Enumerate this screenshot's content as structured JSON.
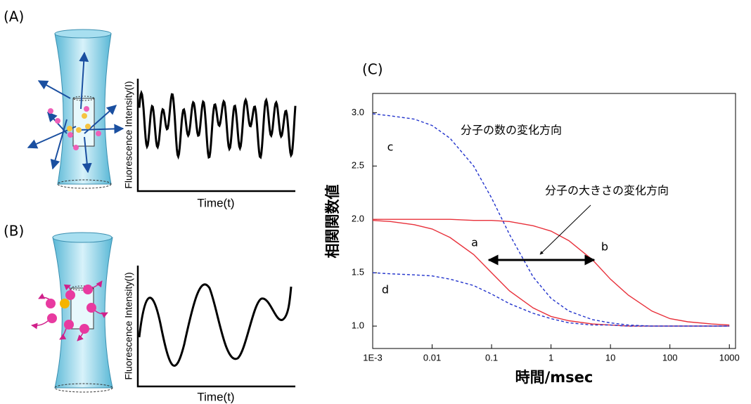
{
  "panels": [
    {
      "label": "(A)",
      "ylabel": "Fluorescence Intensity(I)",
      "xlabel": "Time(t)"
    },
    {
      "label": "(B)",
      "ylabel": "Fluorescence Intensity(I)",
      "xlabel": "Time(t)"
    }
  ],
  "chart_data": {
    "type": "line",
    "title": "(C)",
    "xlabel": "時間/msec",
    "ylabel": "相関関数値",
    "xscale": "log",
    "x": [
      0.001,
      0.002,
      0.005,
      0.01,
      0.02,
      0.05,
      0.1,
      0.2,
      0.5,
      1,
      2,
      5,
      10,
      20,
      50,
      100,
      200,
      500,
      1000
    ],
    "series": [
      {
        "name": "a",
        "color": "#e8303a",
        "style": "solid",
        "values": [
          1.99,
          1.98,
          1.95,
          1.91,
          1.83,
          1.67,
          1.5,
          1.33,
          1.17,
          1.09,
          1.05,
          1.02,
          1.01,
          1.0,
          1.0,
          1.0,
          1.0,
          1.0,
          1.0
        ]
      },
      {
        "name": "b",
        "color": "#e8303a",
        "style": "solid",
        "values": [
          2.0,
          2.0,
          2.0,
          2.0,
          2.0,
          1.99,
          1.99,
          1.98,
          1.94,
          1.89,
          1.8,
          1.62,
          1.44,
          1.29,
          1.14,
          1.07,
          1.04,
          1.02,
          1.01
        ]
      },
      {
        "name": "c",
        "color": "#2233cc",
        "style": "dashed",
        "values": [
          2.99,
          2.97,
          2.94,
          2.88,
          2.76,
          2.5,
          2.2,
          1.86,
          1.46,
          1.26,
          1.14,
          1.06,
          1.03,
          1.01,
          1.0,
          1.0,
          1.0,
          1.0,
          1.0
        ]
      },
      {
        "name": "d",
        "color": "#2233cc",
        "style": "dashed",
        "values": [
          1.5,
          1.49,
          1.48,
          1.47,
          1.44,
          1.38,
          1.3,
          1.21,
          1.12,
          1.07,
          1.03,
          1.01,
          1.01,
          1.0,
          1.0,
          1.0,
          1.0,
          1.0,
          1.0
        ]
      }
    ],
    "annotations": [
      "分子の数の変化方向",
      "分子の大きさの変化方向"
    ],
    "xlim": [
      0.001,
      1270
    ],
    "ylim": [
      0.79,
      3.18
    ],
    "xticks": [
      {
        "value": 0.001,
        "label": "1E-3"
      },
      0.01,
      0.1,
      1,
      10,
      100,
      1000
    ],
    "yticks": [
      {
        "value": 1,
        "label": "1.0"
      },
      1.5,
      {
        "value": 2,
        "label": "2.0"
      },
      2.5,
      {
        "value": 3,
        "label": "3.0"
      }
    ]
  }
}
